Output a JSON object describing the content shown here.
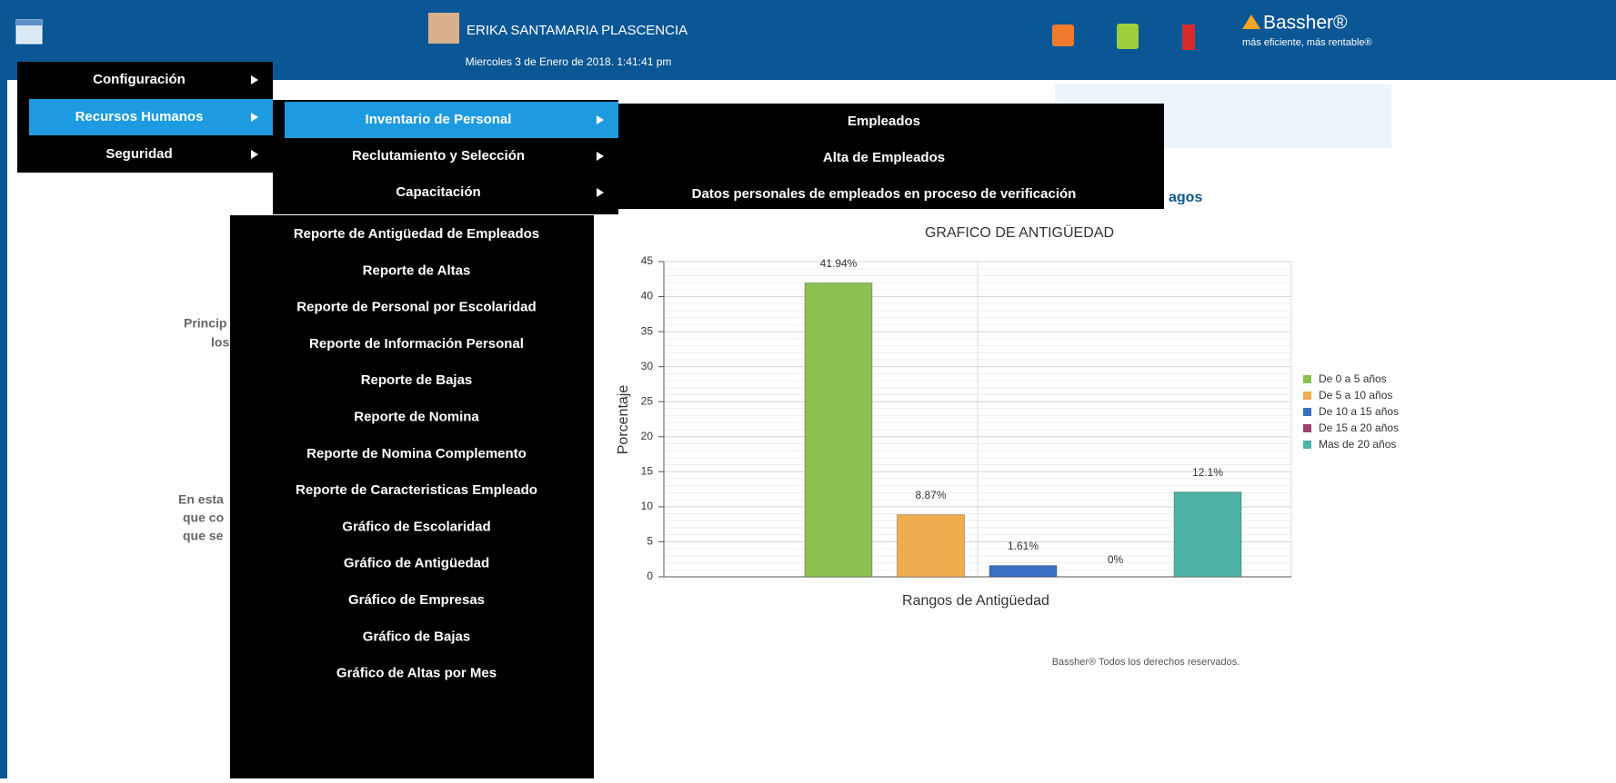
{
  "header": {
    "user_name": "ERIKA SANTAMARIA PLASCENCIA",
    "date": "Miercoles 3 de Enero de 2018. 1:41:41 pm",
    "brand": "Bassher®",
    "tagline": "más eficiente, más rentable®"
  },
  "menu": {
    "level1": [
      "Configuración",
      "Recursos Humanos",
      "Seguridad"
    ],
    "level2": [
      "Inventario de Personal",
      "Reclutamiento y Selección",
      "Capacitación"
    ],
    "level3": [
      "Empleados",
      "Alta de Empleados",
      "Datos personales de empleados en proceso de verificación"
    ],
    "reports": [
      "Reporte de Antigüedad de Empleados",
      "Reporte de Altas",
      "Reporte de Personal por Escolaridad",
      "Reporte de Información Personal",
      "Reporte de Bajas",
      "Reporte de Nomina",
      "Reporte de Nomina Complemento",
      "Reporte de Caracteristicas Empleado",
      "Gráfico de Escolaridad",
      "Gráfico de Antigüedad",
      "Gráfico de Empresas",
      "Gráfico de Bajas",
      "Gráfico de Altas por Mes"
    ]
  },
  "background_fragments": [
    "Princip",
    "los",
    "En esta",
    "que co",
    "que se",
    "agos"
  ],
  "chart_data": {
    "type": "bar",
    "title": "GRAFICO DE ANTIGÜEDAD",
    "x_label": "Rangos de Antigüedad",
    "y_label": "Porcentaje",
    "categories": [
      "De 0 a 5 años",
      "De 5 a 10 años",
      "De 10 a 15 años",
      "De 15 a 20 años",
      "Mas de 20 años"
    ],
    "values": [
      41.94,
      8.87,
      1.61,
      0,
      12.1
    ],
    "value_labels": [
      "41.94%",
      "8.87%",
      "1.61%",
      "0%",
      "12.1%"
    ],
    "colors": [
      "#8cc152",
      "#f0ad4e",
      "#3a6fc4",
      "#a0406e",
      "#4fb3a7"
    ],
    "ylim": [
      0,
      45
    ],
    "yticks": [
      0,
      5,
      10,
      15,
      20,
      25,
      30,
      35,
      40,
      45
    ],
    "grid": true,
    "legend": "right"
  },
  "footer": "Bassher® Todos los derechos reservados."
}
